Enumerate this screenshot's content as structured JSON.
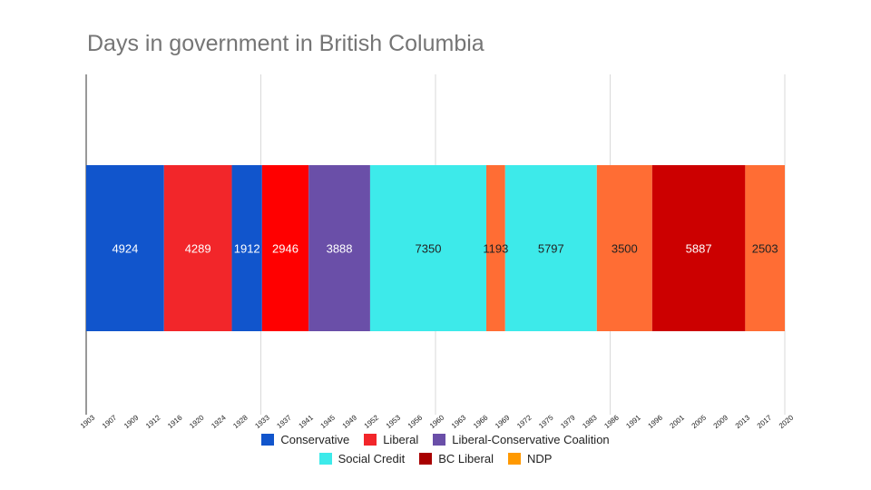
{
  "chart_data": {
    "type": "bar",
    "orientation": "horizontal-stacked",
    "title": "Days in government in British Columbia",
    "segments": [
      {
        "series": "Conservative",
        "value": 4924,
        "label": "4924",
        "color": "#1155cc",
        "label_color": "#ffffff"
      },
      {
        "series": "Liberal",
        "value": 4289,
        "label": "4289",
        "color": "#f2262a",
        "label_color": "#ffffff"
      },
      {
        "series": "Conservative",
        "value": 1912,
        "label": "1912",
        "color": "#1155cc",
        "label_color": "#ffffff"
      },
      {
        "series": "Liberal",
        "value": 2946,
        "label": "2946",
        "color": "#ff0000",
        "label_color": "#ffffff"
      },
      {
        "series": "Liberal-Conservative Coalition",
        "value": 3888,
        "label": "3888",
        "color": "#6a4fa8",
        "label_color": "#ffffff"
      },
      {
        "series": "Social Credit",
        "value": 7350,
        "label": "7350",
        "color": "#3deaea",
        "label_color": "#222222"
      },
      {
        "series": "NDP",
        "value": 1193,
        "label": "1193",
        "color": "#ff6d34",
        "label_color": "#222222"
      },
      {
        "series": "Social Credit",
        "value": 5797,
        "label": "5797",
        "color": "#3deaea",
        "label_color": "#222222"
      },
      {
        "series": "NDP",
        "value": 3500,
        "label": "3500",
        "color": "#ff6d34",
        "label_color": "#222222"
      },
      {
        "series": "BC Liberal",
        "value": 5887,
        "label": "5887",
        "color": "#cc0000",
        "label_color": "#ffffff"
      },
      {
        "series": "NDP",
        "value": 2503,
        "label": "2503",
        "color": "#ff6d34",
        "label_color": "#222222"
      }
    ],
    "x_tick_labels": [
      "1903",
      "1907",
      "1909",
      "1912",
      "1916",
      "1920",
      "1924",
      "1928",
      "1933",
      "1937",
      "1941",
      "1945",
      "1949",
      "1952",
      "1953",
      "1956",
      "1960",
      "1963",
      "1966",
      "1969",
      "1972",
      "1975",
      "1979",
      "1983",
      "1986",
      "1991",
      "1996",
      "2001",
      "2005",
      "2009",
      "2013",
      "2017",
      "2020"
    ],
    "gridlines": "vertical",
    "legend": {
      "position": "bottom",
      "rows": [
        [
          {
            "name": "Conservative",
            "color": "#1155cc"
          },
          {
            "name": "Liberal",
            "color": "#f2262a"
          },
          {
            "name": "Liberal-Conservative Coalition",
            "color": "#6a4fa8"
          }
        ],
        [
          {
            "name": "Social Credit",
            "color": "#3deaea"
          },
          {
            "name": "BC Liberal",
            "color": "#a80000"
          },
          {
            "name": "NDP",
            "color": "#ff9900"
          }
        ]
      ]
    }
  }
}
